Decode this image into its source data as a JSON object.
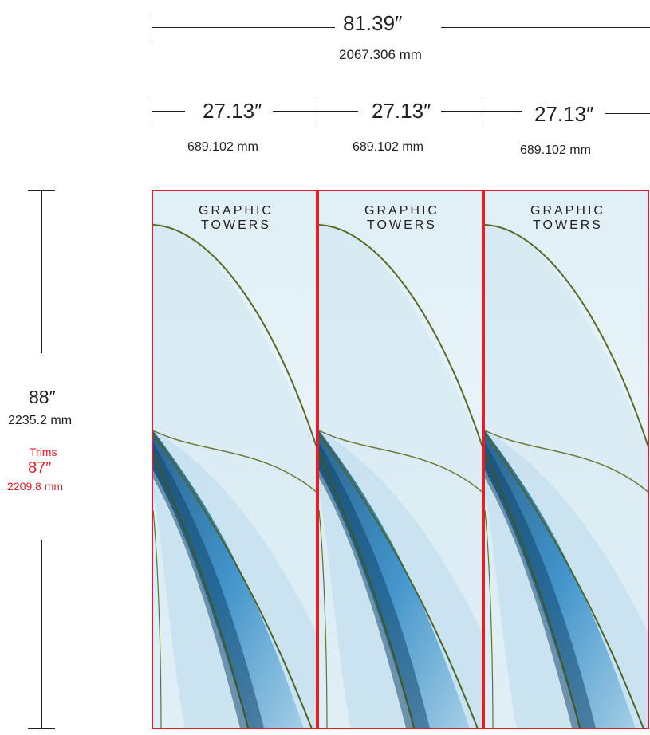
{
  "overall_width": {
    "inches": "81.39″",
    "mm": "2067.306 mm"
  },
  "panel_width": {
    "inches": "27.13″",
    "mm": "689.102 mm"
  },
  "height": {
    "inches": "88″",
    "mm": "2235.2 mm"
  },
  "trims": {
    "label": "Trims",
    "inches": "87″",
    "mm": "2209.8 mm"
  },
  "brand": {
    "line1": "GRAPHIC",
    "line2": "TOWERS"
  },
  "panels": [
    {
      "id": "panel-1"
    },
    {
      "id": "panel-2"
    },
    {
      "id": "panel-3"
    }
  ],
  "colors": {
    "trim_line": "#e31e24",
    "dimension_line": "#231f20",
    "sky": "#dff0f6",
    "blue_accent": "#2a86c4",
    "olive_accent": "#6f7a3a"
  }
}
